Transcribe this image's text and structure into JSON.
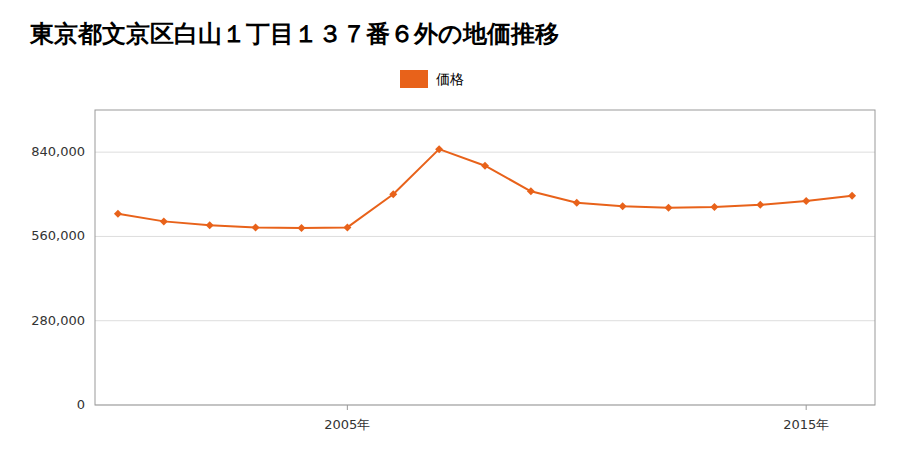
{
  "chart_data": {
    "type": "line",
    "title": "東京都文京区白山１丁目１３７番６外の地価推移",
    "x": [
      2000,
      2001,
      2002,
      2003,
      2004,
      2005,
      2006,
      2007,
      2008,
      2009,
      2010,
      2011,
      2012,
      2013,
      2014,
      2015,
      2016
    ],
    "series": [
      {
        "name": "価格",
        "color": "#E8621A",
        "marker": "diamond",
        "values": [
          635000,
          610000,
          597000,
          590000,
          588000,
          590000,
          700000,
          850000,
          795000,
          710000,
          672000,
          660000,
          655000,
          658000,
          665000,
          678000,
          695000
        ]
      }
    ],
    "xlim": [
      1999.5,
      2016.5
    ],
    "xticks": [
      {
        "value": 2005,
        "label": "2005年"
      },
      {
        "value": 2015,
        "label": "2015年"
      }
    ],
    "ylim": [
      0,
      980000
    ],
    "yticks": [
      0,
      {
        "value": 280000,
        "label": "280,000"
      },
      {
        "value": 560000,
        "label": "560,000"
      },
      {
        "value": 840000,
        "label": "840,000"
      }
    ],
    "grid": true,
    "legend": "top"
  }
}
